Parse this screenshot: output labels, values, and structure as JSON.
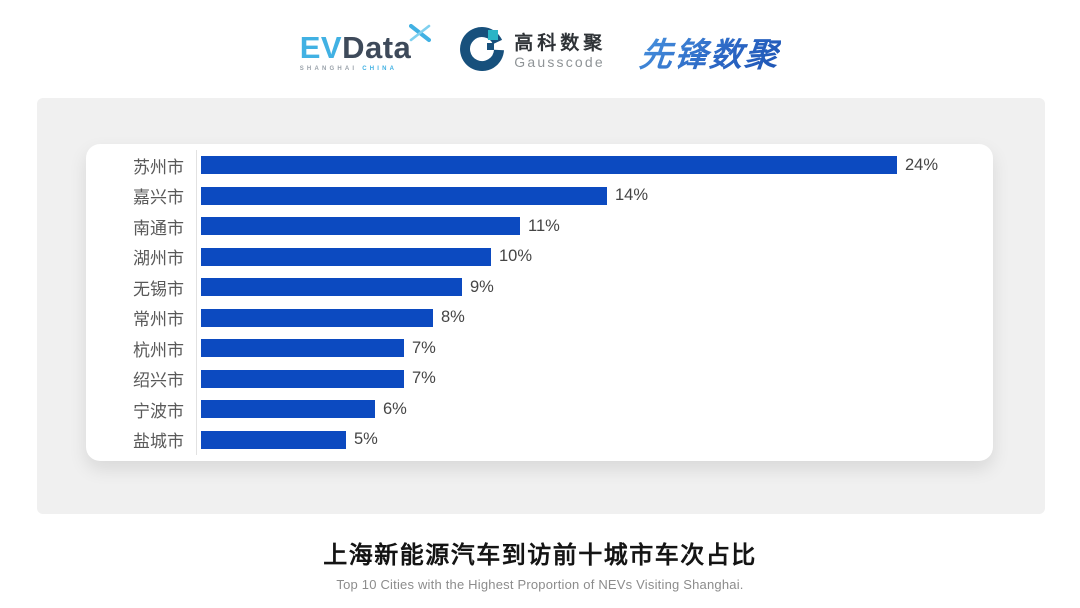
{
  "header": {
    "evdata_logo": {
      "part_ev": "EV",
      "part_data": "Data",
      "tagline_left": "SHANGHAI",
      "tagline_right": "CHINA"
    },
    "gausscode_logo": {
      "name_cn": "高科数聚",
      "name_en": "Gausscode"
    },
    "pioneer_logo": {
      "text": "先锋数聚"
    }
  },
  "chart_data": {
    "type": "bar",
    "orientation": "horizontal",
    "title": "上海新能源汽车到访前十城市车次占比",
    "subtitle": "Top 10 Cities with the Highest Proportion of  NEVs Visiting Shanghai.",
    "categories": [
      "苏州市",
      "嘉兴市",
      "南通市",
      "湖州市",
      "无锡市",
      "常州市",
      "杭州市",
      "绍兴市",
      "宁波市",
      "盐城市"
    ],
    "values": [
      24,
      14,
      11,
      10,
      9,
      8,
      7,
      7,
      6,
      5
    ],
    "value_labels": [
      "24%",
      "14%",
      "11%",
      "10%",
      "9%",
      "8%",
      "7%",
      "7%",
      "6%",
      "5%"
    ],
    "xlim": [
      0,
      24
    ],
    "unit": "%",
    "bar_color": "#0c4ac0",
    "label_color": "#595959",
    "value_color": "#454545",
    "axis_line_color": "#e2e2e2",
    "grid": false,
    "legend": false
  }
}
